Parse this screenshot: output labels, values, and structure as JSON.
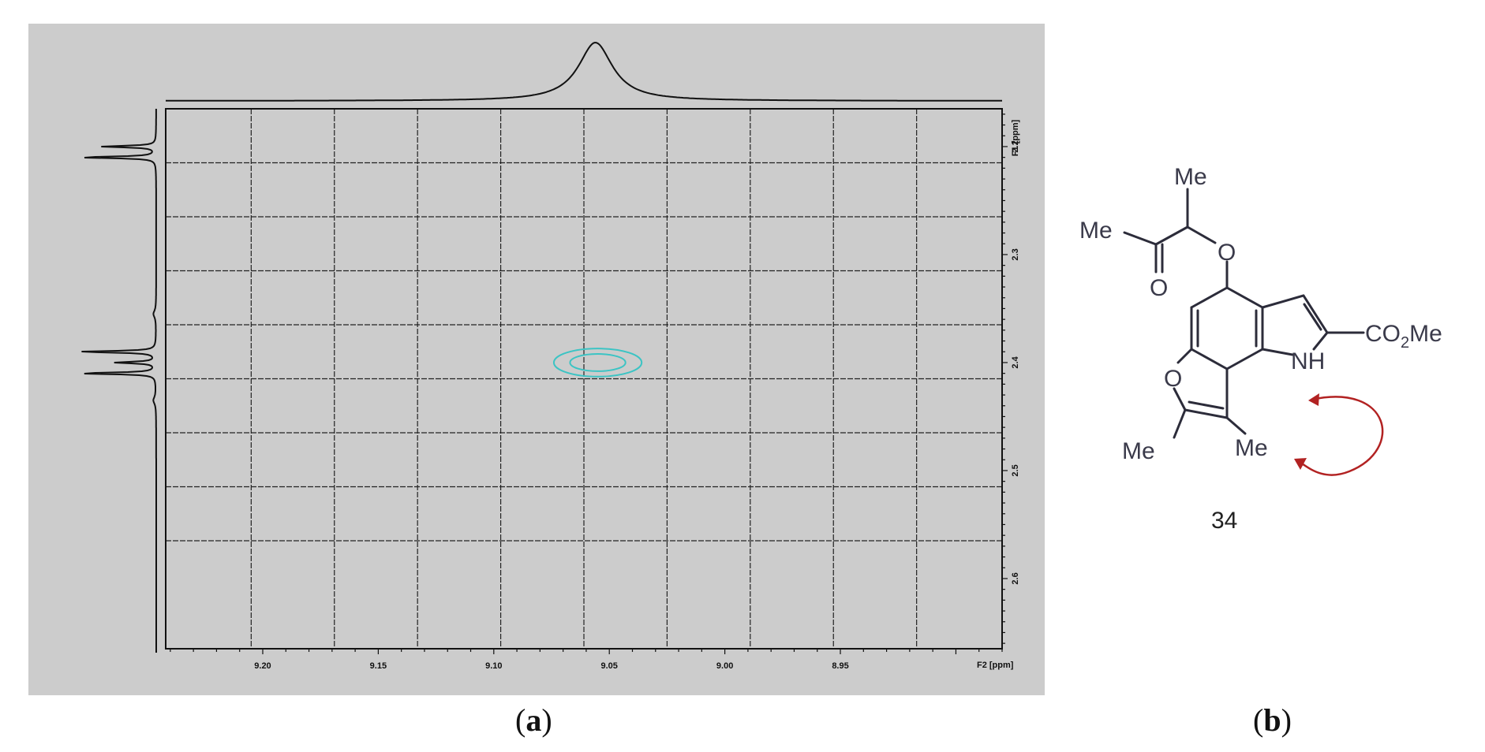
{
  "chart_data": {
    "type": "contour",
    "panel_label": "a",
    "x_axis_label": "F2 [ppm]",
    "y_axis_label": "F1 [ppm]",
    "x_range": [
      9.242,
      8.88
    ],
    "y_range": [
      2.165,
      2.665
    ],
    "x_grid": [
      9.205,
      9.169,
      9.133,
      9.097,
      9.061,
      9.025,
      8.989,
      8.953,
      8.917
    ],
    "y_grid": [
      2.215,
      2.265,
      2.315,
      2.365,
      2.415,
      2.465,
      2.515,
      2.565
    ],
    "x_tick_labels": [
      {
        "value": 9.2,
        "label": "9.20"
      },
      {
        "value": 9.15,
        "label": "9.15"
      },
      {
        "value": 9.1,
        "label": "9.10"
      },
      {
        "value": 9.05,
        "label": "9.05"
      },
      {
        "value": 9.0,
        "label": "9.00"
      },
      {
        "value": 8.95,
        "label": "8.95"
      }
    ],
    "y_tick_labels": [
      {
        "value": 2.2,
        "label": "2.2"
      },
      {
        "value": 2.3,
        "label": "2.3"
      },
      {
        "value": 2.4,
        "label": "2.4"
      },
      {
        "value": 2.5,
        "label": "2.5"
      },
      {
        "value": 2.6,
        "label": "2.6"
      }
    ],
    "cross_peak": {
      "x": 9.055,
      "y": 2.4,
      "x_halfwidth": [
        0.019,
        0.012
      ],
      "y_halfwidth": [
        0.013,
        0.008
      ],
      "color": "#3cc4c4"
    },
    "f2_projection_peak": {
      "center": 9.056,
      "width": 0.009
    },
    "f1_projection_peaks": [
      {
        "center": 2.2,
        "height": 0.6,
        "width": 0.0009
      },
      {
        "center": 2.21,
        "height": 0.85,
        "width": 0.0009
      },
      {
        "center": 2.39,
        "height": 0.85,
        "width": 0.0009
      },
      {
        "center": 2.4,
        "height": 0.45,
        "width": 0.0009
      },
      {
        "center": 2.41,
        "height": 0.85,
        "width": 0.0009
      },
      {
        "center": 2.355,
        "height": 0.03,
        "width": 0.004
      },
      {
        "center": 2.435,
        "height": 0.03,
        "width": 0.004
      }
    ],
    "grid": true,
    "background": "#cccccc"
  },
  "molecule": {
    "compound_number": "34",
    "labels": {
      "me_top": "Me",
      "me_acetyl": "Me",
      "o_ether": "O",
      "o_carbonyl": "O",
      "co2me_co": "CO",
      "co2me_sub": "2",
      "co2me_me": "Me",
      "nh": "NH",
      "o_furan": "O",
      "me_furan": "Me",
      "me_c8": "Me"
    },
    "arrow_color": "#b22222"
  },
  "captions": {
    "a_open": "(",
    "a_letter": "a",
    "a_close": ")",
    "b_open": "(",
    "b_letter": "b",
    "b_close": ")"
  }
}
